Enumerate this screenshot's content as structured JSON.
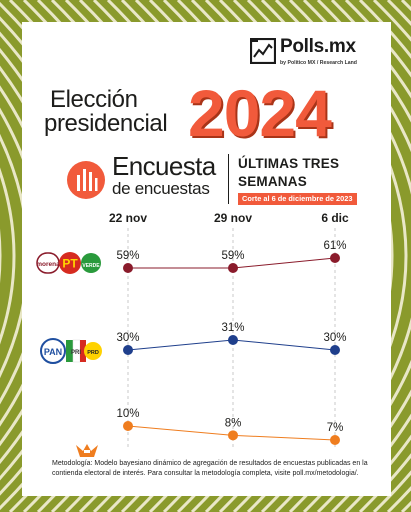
{
  "brand": {
    "name": "Polls.mx",
    "tagline": "by Politico MX / Research Land"
  },
  "title": {
    "line1": "Elección",
    "line2": "presidencial",
    "year": "2024"
  },
  "survey": {
    "name_line1": "Encuesta",
    "name_line2": "de encuestas",
    "subtitle_line1": "ÚLTIMAS TRES",
    "subtitle_line2": "SEMANAS",
    "cutoff": "Corte al 6 de diciembre de 2023"
  },
  "colors": {
    "accent": "#f15a3b",
    "morena_series": "#8a1b2b",
    "fuerza_series": "#1f3f8c",
    "mc_series": "#ef7d1f",
    "background_stripes": "#8a9a2c"
  },
  "parties": {
    "morena_pt_verde": [
      "morena",
      "PT",
      "VERDE"
    ],
    "pan_pri_prd": [
      "PAN",
      "PRI",
      "PRD"
    ],
    "mc": "movimiento-ciudadano-eagle-icon"
  },
  "chart_data": {
    "type": "line",
    "categories": [
      "22 nov",
      "29 nov",
      "6 dic"
    ],
    "ylim": [
      0,
      70
    ],
    "grid": "vertical",
    "series": [
      {
        "name": "morena / PT / VERDE",
        "color": "#8a1b2b",
        "values": [
          59,
          59,
          61
        ],
        "labels": [
          "59%",
          "59%",
          "61%"
        ]
      },
      {
        "name": "PAN / PRI / PRD",
        "color": "#1f3f8c",
        "values": [
          30,
          31,
          30
        ],
        "labels": [
          "30%",
          "31%",
          "30%"
        ]
      },
      {
        "name": "Movimiento Ciudadano",
        "color": "#ef7d1f",
        "values": [
          10,
          8,
          7
        ],
        "labels": [
          "10%",
          "8%",
          "7%"
        ]
      }
    ]
  },
  "footnote": "Metodología: Modelo bayesiano dinámico de agregación de resultados de encuestas publicadas en la contienda electoral de interés. Para consultar la metodología completa, visite poll.mx/metodologia/."
}
